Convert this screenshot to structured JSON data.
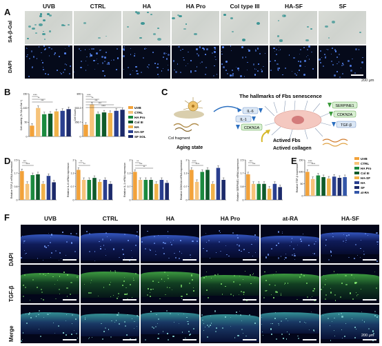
{
  "panels": {
    "A": {
      "letter": "A",
      "columns": [
        "UVB",
        "CTRL",
        "HA",
        "HA Pro",
        "Col type III",
        "HA-SF",
        "SF"
      ],
      "rows": [
        "SA-β-Gal",
        "DAPI"
      ],
      "scale": "200 μm"
    },
    "B": {
      "letter": "B",
      "legend": [
        "UVB",
        "CTRL",
        "HA Pro",
        "Col III",
        "HA",
        "HA-SF",
        "SF SOL"
      ]
    },
    "C": {
      "letter": "C",
      "title": "The hallmarks of Fbs senescence",
      "col_fragment": "Col fragment",
      "aging_state": "Aging state",
      "markers_left": [
        "IL-6",
        "IL-1",
        "CDKN1A"
      ],
      "markers_right": [
        "SERPINE1",
        "CDKN2A",
        "TGF-β"
      ],
      "actived_fbs": "Actived Fbs",
      "actived_collagen": "Actived collagen"
    },
    "D": {
      "letter": "D"
    },
    "E": {
      "letter": "E",
      "legend": [
        "UVB",
        "CTRL",
        "HA Pro",
        "Col III",
        "HA-SF",
        "HA",
        "SF",
        "at-RA"
      ]
    },
    "F": {
      "letter": "F",
      "columns": [
        "UVB",
        "CTRL",
        "HA",
        "HA Pro",
        "at-RA",
        "HA-SF"
      ],
      "rows": [
        "DAPI",
        "TGF-β",
        "Merge"
      ],
      "scale": "200 μm"
    }
  },
  "colors": {
    "uvb": "#f2a23a",
    "ctrl": "#f6c37a",
    "ha": "#f0b24a",
    "ha_pro": "#1b8a3e",
    "col3": "#0f5a2a",
    "ha_sf": "#2a3f8f",
    "sf": "#1c2a6a",
    "at_ra": "#3456a8"
  },
  "chart_data": [
    {
      "type": "bar",
      "title": "",
      "ylabel": "Cell viability (% SA-β-Gal +)",
      "categories": [
        "UVB",
        "CTRL",
        "HA Pro",
        "Col III",
        "HA",
        "HA-SF",
        "SF SOL"
      ],
      "values": [
        38,
        100,
        78,
        80,
        88,
        90,
        96
      ],
      "ylim": [
        0,
        150
      ],
      "significance": [
        "****",
        "**",
        "***"
      ]
    },
    {
      "type": "bar",
      "title": "",
      "ylabel": "Cell Count",
      "categories": [
        "UVB",
        "CTRL",
        "HA Pro",
        "Col III",
        "HA",
        "HA-SF",
        "SF SOL"
      ],
      "values": [
        220,
        600,
        420,
        450,
        440,
        480,
        500
      ],
      "ylim": [
        0,
        800
      ],
      "significance": [
        "****",
        "**",
        "***",
        "***",
        "****"
      ]
    },
    {
      "type": "bar",
      "ylabel": "Relative TGF-β mRNA expression",
      "categories": [
        "UVB",
        "CTRL",
        "HA Pro",
        "Col III",
        "HA",
        "HA-SF",
        "SF"
      ],
      "values": [
        1.8,
        1.0,
        1.55,
        1.6,
        1.0,
        1.5,
        1.1
      ],
      "ylim": [
        0,
        2.5
      ],
      "significance": [
        "***",
        "****"
      ]
    },
    {
      "type": "bar",
      "ylabel": "Relative IL-6 mRNA expression",
      "categories": [
        "UVB",
        "CTRL",
        "HA Pro",
        "Col III",
        "HA",
        "HA-SF",
        "SF"
      ],
      "values": [
        1.5,
        1.0,
        1.0,
        1.1,
        0.9,
        1.0,
        0.8
      ],
      "ylim": [
        0,
        2.0
      ],
      "significance": [
        "**",
        "**"
      ]
    },
    {
      "type": "bar",
      "ylabel": "Relative IL-1 mRNA expression",
      "categories": [
        "UVB",
        "CTRL",
        "HA Pro",
        "Col III",
        "HA",
        "HA-SF",
        "SF"
      ],
      "values": [
        1.4,
        1.0,
        1.0,
        1.0,
        0.8,
        1.0,
        0.85
      ],
      "ylim": [
        0,
        2.0
      ],
      "significance": [
        "**",
        "***",
        "**"
      ]
    },
    {
      "type": "bar",
      "ylabel": "Relative CDKN1A mRNA expression",
      "categories": [
        "UVB",
        "CTRL",
        "HA Pro",
        "Col III",
        "HA",
        "HA-SF",
        "SF"
      ],
      "values": [
        1.5,
        0.9,
        1.4,
        1.5,
        0.8,
        1.6,
        1.0
      ],
      "ylim": [
        0,
        2.0
      ],
      "significance": [
        "****",
        "****"
      ]
    },
    {
      "type": "bar",
      "ylabel": "Relative SERPINE1 mRNA expression",
      "categories": [
        "UVB",
        "CTRL",
        "HA Pro",
        "Col III",
        "HA",
        "HA-SF",
        "SF"
      ],
      "values": [
        1.6,
        1.0,
        1.0,
        1.0,
        0.7,
        1.0,
        0.8
      ],
      "ylim": [
        0,
        2.5
      ],
      "significance": [
        "***",
        "***"
      ]
    },
    {
      "type": "bar",
      "ylabel": "Relative TGF-β expression",
      "categories": [
        "UVB",
        "CTRL",
        "HA Pro",
        "Col III",
        "HA-SF",
        "HA",
        "SF",
        "at-RA"
      ],
      "values": [
        100,
        70,
        85,
        78,
        72,
        80,
        75,
        78
      ],
      "ylim": [
        0,
        150
      ],
      "significance": [
        "****",
        "****"
      ]
    }
  ]
}
